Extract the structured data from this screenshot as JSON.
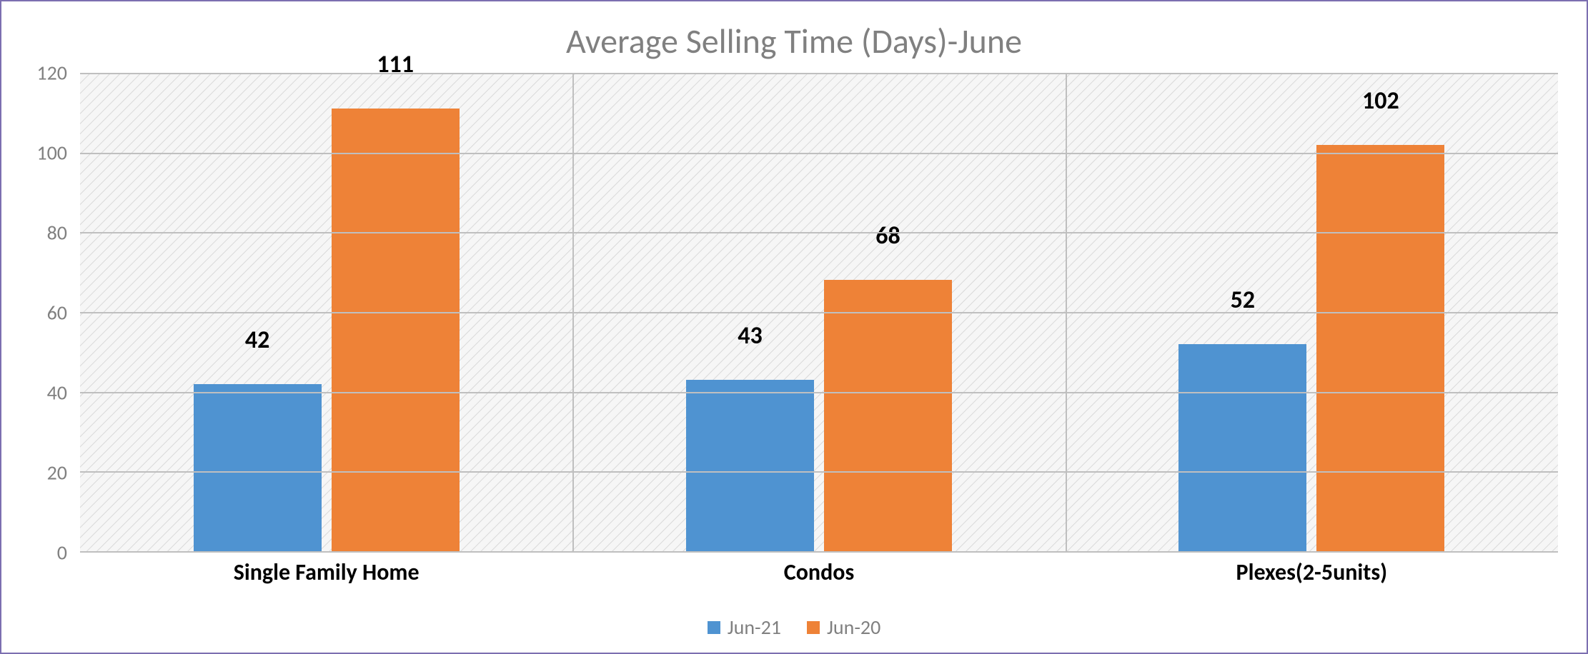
{
  "chart": {
    "type": "bar",
    "title": "Average Selling Time (Days)-June",
    "title_fontsize": 48,
    "title_color": "#808080",
    "background_color": "#ffffff",
    "frame_border_color": "#7c6fb0",
    "plot_background_pattern": "diagonal-hatch",
    "plot_background_hatch_color": "#d9d9d9",
    "plot_background_base_color": "#f6f6f6",
    "grid_color": "#bfbfbf",
    "axis_label_color": "#808080",
    "axis_label_fontsize": 28,
    "category_label_fontsize": 32,
    "category_label_fontweight": "bold",
    "category_label_color": "#000000",
    "value_label_fontsize": 34,
    "value_label_fontweight": "bold",
    "value_label_color": "#000000",
    "ylim": [
      0,
      120
    ],
    "ytick_step": 20,
    "yticks": [
      0,
      20,
      40,
      60,
      80,
      100,
      120
    ],
    "categories": [
      "Single Family Home",
      "Condos",
      "Plexes(2-5units)"
    ],
    "series": [
      {
        "name": "Jun-21",
        "color": "#4f93d1",
        "values": [
          42,
          43,
          52
        ]
      },
      {
        "name": "Jun-20",
        "color": "#ee8237",
        "values": [
          111,
          68,
          102
        ]
      }
    ],
    "bar_width_fraction_of_slot": 0.52,
    "bar_gap_fraction_of_slot": 0.02,
    "legend_fontsize": 28,
    "legend_color": "#808080"
  }
}
